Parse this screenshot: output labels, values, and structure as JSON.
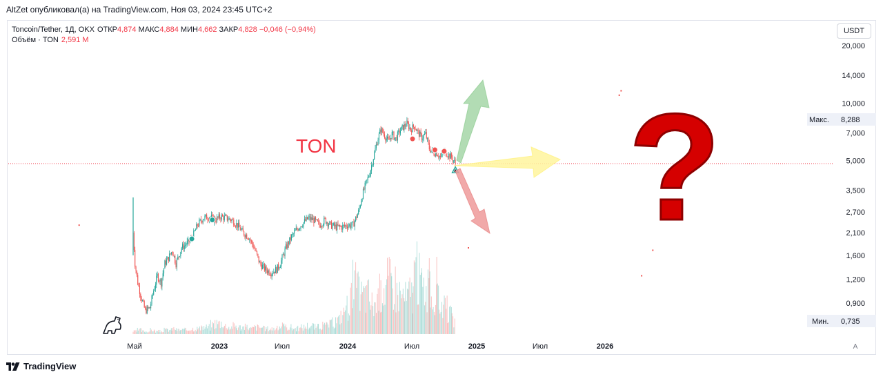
{
  "header": {
    "credit": "AltZet опубликовал(а) на TradingView.com, Ноя 03, 2024 23:45 UTC+2"
  },
  "legend": {
    "symbol": "Toncoin/Tether, 1Д, OKX",
    "open_label": "ОТКР",
    "open_value": "4,874",
    "high_label": "МАКС",
    "high_value": "4,884",
    "low_label": "МИН",
    "low_value": "4,662",
    "close_label": "ЗАКР",
    "close_value": "4,828",
    "change": "−0,046 (−0,94%)",
    "volume_label": "Объём · TON",
    "volume_value": "2,591 М"
  },
  "toolbar": {
    "currency": "USDT",
    "auto": "A"
  },
  "footer": {
    "brand": "TradingView"
  },
  "colors": {
    "up": "#26a69a",
    "down": "#ef5350",
    "text_red": "#f23645",
    "arrow_up": "#a5d6a7",
    "arrow_side": "#fff59d",
    "arrow_down": "#ef9a9a",
    "question_mark": "#d50000"
  },
  "chart_data": {
    "type": "candlestick",
    "symbol": "Toncoin/Tether",
    "annotation_text": "TON",
    "annotation_symbol": "?",
    "y_scale": "log",
    "ylim": [
      0.6,
      28.0
    ],
    "y_ticks": [
      "20,000",
      "14,000",
      "10,000",
      "7,000",
      "5,000",
      "3,500",
      "2,700",
      "2,100",
      "1,600",
      "1,200",
      "0,900"
    ],
    "x_ticks": [
      "Май",
      "2023",
      "Июл",
      "2024",
      "Июл",
      "2025",
      "Июл",
      "2026"
    ],
    "max_label": "Макс.",
    "max_value": "8,288",
    "min_label": "Мин.",
    "min_value": "0,735",
    "last_price": 4.828,
    "price_path": [
      [
        0,
        2.1
      ],
      [
        2,
        1.45
      ],
      [
        5,
        1.15
      ],
      [
        9,
        0.95
      ],
      [
        13,
        0.82
      ],
      [
        18,
        0.85
      ],
      [
        22,
        1.05
      ],
      [
        26,
        1.25
      ],
      [
        30,
        1.15
      ],
      [
        34,
        1.45
      ],
      [
        38,
        1.55
      ],
      [
        42,
        1.7
      ],
      [
        46,
        1.45
      ],
      [
        52,
        1.75
      ],
      [
        58,
        1.85
      ],
      [
        63,
        1.95
      ],
      [
        69,
        2.3
      ],
      [
        75,
        2.5
      ],
      [
        82,
        2.55
      ],
      [
        88,
        2.45
      ],
      [
        94,
        2.55
      ],
      [
        100,
        2.5
      ],
      [
        106,
        2.45
      ],
      [
        112,
        2.3
      ],
      [
        118,
        2.1
      ],
      [
        124,
        2.0
      ],
      [
        130,
        1.75
      ],
      [
        136,
        1.45
      ],
      [
        142,
        1.35
      ],
      [
        148,
        1.3
      ],
      [
        154,
        1.35
      ],
      [
        158,
        1.45
      ],
      [
        164,
        1.75
      ],
      [
        170,
        2.0
      ],
      [
        176,
        2.2
      ],
      [
        182,
        2.35
      ],
      [
        188,
        2.5
      ],
      [
        194,
        2.45
      ],
      [
        200,
        2.3
      ],
      [
        206,
        2.45
      ],
      [
        212,
        2.3
      ],
      [
        218,
        2.25
      ],
      [
        224,
        2.25
      ],
      [
        230,
        2.3
      ],
      [
        236,
        2.3
      ],
      [
        242,
        2.7
      ],
      [
        246,
        3.3
      ],
      [
        250,
        3.8
      ],
      [
        254,
        4.3
      ],
      [
        258,
        5.2
      ],
      [
        262,
        6.3
      ],
      [
        266,
        7.3
      ],
      [
        270,
        6.8
      ],
      [
        274,
        6.3
      ],
      [
        278,
        6.9
      ],
      [
        282,
        6.5
      ],
      [
        286,
        7.1
      ],
      [
        290,
        7.5
      ],
      [
        294,
        7.8
      ],
      [
        298,
        7.3
      ],
      [
        302,
        7.6
      ],
      [
        306,
        7.0
      ],
      [
        310,
        6.6
      ],
      [
        314,
        6.9
      ],
      [
        318,
        5.8
      ],
      [
        322,
        5.5
      ],
      [
        326,
        5.5
      ],
      [
        330,
        5.2
      ],
      [
        334,
        5.6
      ],
      [
        338,
        5.4
      ],
      [
        342,
        5.2
      ],
      [
        346,
        4.83
      ]
    ],
    "markers": [
      {
        "type": "dividend-dot",
        "color": "#26a69a",
        "x": 63,
        "y": 1.95
      },
      {
        "type": "dividend-dot",
        "color": "#26a69a",
        "x": 85,
        "y": 2.45
      },
      {
        "type": "event-dot",
        "color": "#ef5350",
        "x": 300,
        "y": 6.5
      },
      {
        "type": "event-dot",
        "color": "#ef5350",
        "x": 324,
        "y": 5.7
      },
      {
        "type": "event-dot",
        "color": "#ef5350",
        "x": 334,
        "y": 5.6
      },
      {
        "type": "triangle",
        "color": "#26a69a",
        "x": 346,
        "y": 4.45
      }
    ],
    "scatter_points": [
      {
        "x": -58,
        "y": 2.3
      },
      {
        "x": 360,
        "y": 1.75
      },
      {
        "x": 522,
        "y": 11.0
      },
      {
        "x": 524,
        "y": 11.6
      },
      {
        "x": 546,
        "y": 1.25
      },
      {
        "x": 558,
        "y": 1.7
      }
    ],
    "volume": [
      2,
      3,
      2,
      2,
      3,
      2,
      2,
      3,
      3,
      4,
      3,
      3,
      3,
      4,
      4,
      4,
      5,
      5,
      7,
      8,
      8,
      6,
      5,
      6,
      5,
      5,
      5,
      4,
      5,
      5,
      4,
      4,
      4,
      4,
      6,
      5,
      5,
      4,
      4,
      5,
      6,
      6,
      5,
      6,
      6,
      7,
      8,
      10,
      14,
      20,
      26,
      36,
      30,
      28,
      28,
      22,
      22,
      30,
      34,
      38,
      36,
      30,
      28,
      26,
      30,
      44,
      40,
      34,
      30,
      26,
      24,
      22,
      18,
      14,
      10
    ]
  }
}
